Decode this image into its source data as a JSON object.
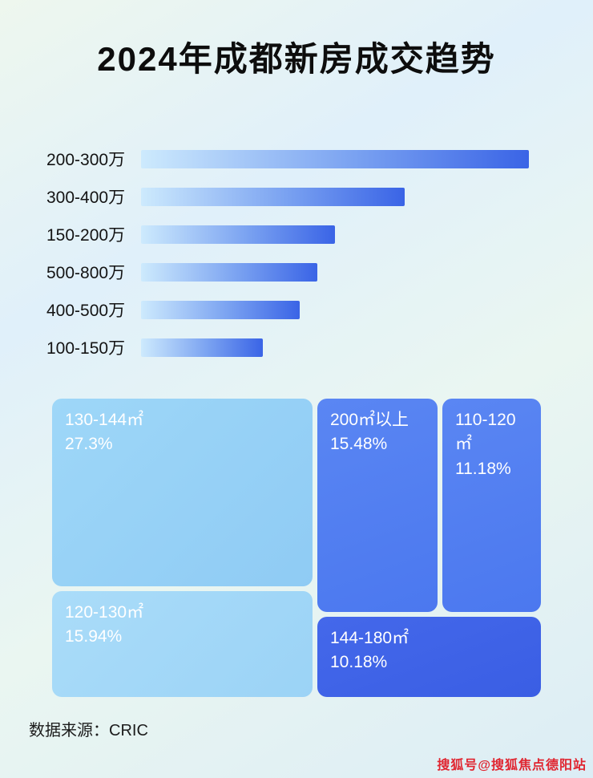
{
  "page": {
    "title": "2024年成都新房成交趋势",
    "source_note": "数据来源：CRIC",
    "watermark": "搜狐号@搜狐焦点德阳站"
  },
  "colors": {
    "bar_gradient_start": "#cdeafd",
    "bar_gradient_end": "#3a64e6",
    "treemap_light": "#8fcbf4",
    "treemap_light2": "#9bd3f6",
    "treemap_medium": "#4b78ef",
    "treemap_dark": "#3a5ee4",
    "watermark_red": "#e02530"
  },
  "chart_data": [
    {
      "type": "bar",
      "orientation": "horizontal",
      "title": "2024年成都新房成交趋势",
      "categories": [
        "200-300万",
        "300-400万",
        "150-200万",
        "500-800万",
        "400-500万",
        "100-150万"
      ],
      "values": [
        100,
        68,
        50,
        45.5,
        41,
        31.5
      ],
      "value_note": "bars carry no printed numbers; values are relative lengths (% of longest bar) estimated from pixels",
      "xlabel": "",
      "ylabel": "",
      "grid": false,
      "legend": "none"
    },
    {
      "type": "treemap",
      "items": [
        {
          "label": "130-144㎡",
          "pct_label": "27.3%",
          "value": 27.3
        },
        {
          "label": "200㎡以上",
          "pct_label": "15.48%",
          "value": 15.48
        },
        {
          "label": "110-120㎡",
          "pct_label": "11.18%",
          "value": 11.18
        },
        {
          "label": "120-130㎡",
          "pct_label": "15.94%",
          "value": 15.94
        },
        {
          "label": "144-180㎡",
          "pct_label": "10.18%",
          "value": 10.18
        }
      ],
      "legend": "none"
    }
  ]
}
